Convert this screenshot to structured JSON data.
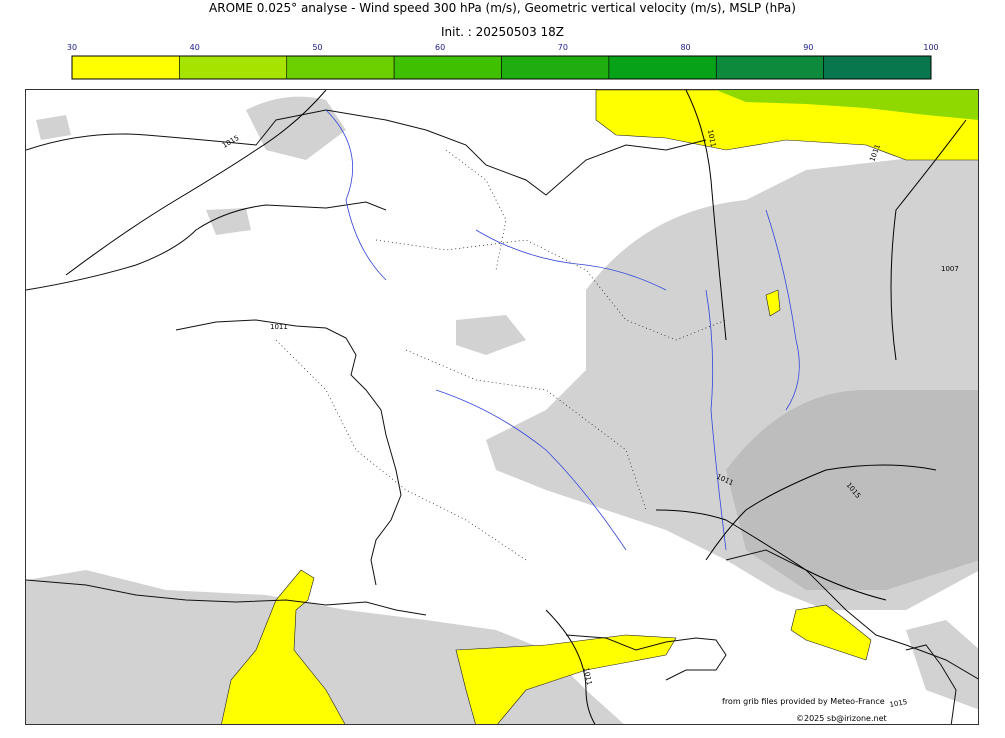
{
  "title": "AROME 0.025° analyse - Wind speed 300 hPa (m/s), Geometric vertical velocity (m/s), MSLP (hPa)",
  "init": "Init. : 20250503 18Z",
  "colorbar": {
    "ticks": [
      "30",
      "40",
      "50",
      "60",
      "70",
      "80",
      "90",
      "100"
    ],
    "colors": [
      "#ffff00",
      "#a6e300",
      "#6ccf00",
      "#3fc000",
      "#1fae10",
      "#07a218",
      "#0e8a3c",
      "#08774e"
    ]
  },
  "map": {
    "isobar_labels": [
      "1015",
      "1011",
      "1011",
      "1011",
      "1007",
      "1011",
      "1015",
      "1011",
      "1015"
    ],
    "land_color": "#ffffff",
    "shade_color": "#cfcfcf",
    "wind_color": "#ffff00",
    "river_color": "#3344dd"
  },
  "credits": {
    "source": "from grib files provided by Meteo-France",
    "copyright": "©2025 sb@irizone.net"
  }
}
